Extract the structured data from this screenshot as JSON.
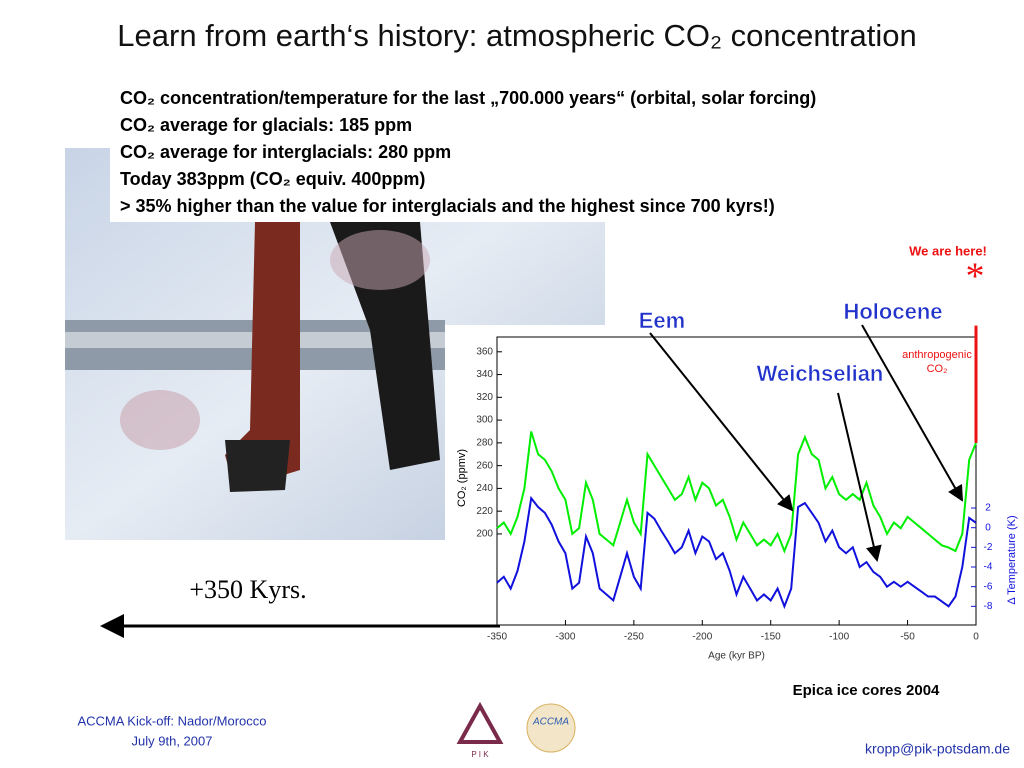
{
  "title": "Learn from earth‘s history: atmospheric CO₂ concentration",
  "bullets": [
    "CO₂ concentration/temperature for the last „700.000 years“ (orbital, solar forcing)",
    "CO₂ average for glacials: 185 ppm",
    "CO₂ average for interglacials: 280 ppm",
    "Today 383ppm (CO₂ equiv. 400ppm)",
    "> 35% higher than the value for interglacials and the highest since 700 kyrs!)"
  ],
  "chart_data": {
    "type": "line",
    "xlabel": "Age (kyr BP)",
    "ylabel": "CO₂ (ppmv)",
    "y2label": "Δ Temperature (K)",
    "x": [
      -350,
      -345,
      -340,
      -335,
      -330,
      -325,
      -320,
      -315,
      -310,
      -305,
      -300,
      -295,
      -290,
      -285,
      -280,
      -275,
      -270,
      -265,
      -260,
      -255,
      -250,
      -245,
      -240,
      -235,
      -230,
      -225,
      -220,
      -215,
      -210,
      -205,
      -200,
      -195,
      -190,
      -185,
      -180,
      -175,
      -170,
      -165,
      -160,
      -155,
      -150,
      -145,
      -140,
      -135,
      -130,
      -125,
      -120,
      -115,
      -110,
      -105,
      -100,
      -95,
      -90,
      -85,
      -80,
      -75,
      -70,
      -65,
      -60,
      -55,
      -50,
      -45,
      -40,
      -35,
      -30,
      -25,
      -20,
      -15,
      -10,
      -5,
      0
    ],
    "series": [
      {
        "color": "#00ee00",
        "values": [
          205,
          210,
          200,
          215,
          240,
          290,
          270,
          265,
          255,
          240,
          230,
          200,
          205,
          245,
          230,
          200,
          195,
          190,
          210,
          230,
          210,
          200,
          270,
          260,
          250,
          240,
          230,
          235,
          250,
          230,
          245,
          240,
          225,
          230,
          215,
          195,
          210,
          200,
          190,
          195,
          190,
          200,
          185,
          200,
          270,
          285,
          270,
          265,
          240,
          250,
          235,
          230,
          235,
          230,
          245,
          225,
          215,
          200,
          210,
          205,
          215,
          210,
          205,
          200,
          195,
          190,
          188,
          185,
          200,
          265,
          280
        ]
      },
      {
        "color": "#1111dd",
        "axis": "y2",
        "values": [
          -5.6,
          -5.0,
          -6.2,
          -4.4,
          -1.4,
          3.0,
          2.1,
          1.5,
          0.3,
          -1.4,
          -2.6,
          -6.2,
          -5.6,
          -0.9,
          -2.6,
          -6.2,
          -6.8,
          -7.4,
          -5.0,
          -2.6,
          -5.0,
          -6.2,
          1.5,
          0.9,
          -0.3,
          -1.4,
          -2.6,
          -2.0,
          -0.3,
          -2.6,
          -0.9,
          -1.4,
          -3.2,
          -2.6,
          -4.4,
          -6.8,
          -5.0,
          -6.2,
          -7.4,
          -6.8,
          -7.4,
          -6.2,
          -8.0,
          -6.2,
          2.1,
          2.5,
          1.5,
          0.5,
          -1.4,
          -0.3,
          -2.0,
          -2.6,
          -2.0,
          -4.0,
          -3.5,
          -4.5,
          -5.0,
          -6.0,
          -5.5,
          -6.0,
          -5.5,
          -6.0,
          -6.5,
          -7.0,
          -7.0,
          -7.5,
          -8.0,
          -7.0,
          -4.0,
          1.0,
          0.5
        ]
      },
      {
        "color": "#ee1111",
        "x": [
          0,
          0
        ],
        "values": [
          280,
          383
        ]
      }
    ],
    "xlim": [
      -350,
      0
    ],
    "xticks": [
      -350,
      -300,
      -250,
      -200,
      -150,
      -100,
      -50,
      0
    ],
    "ylim": [
      120,
      373
    ],
    "yticks": [
      200,
      220,
      240,
      260,
      280,
      300,
      320,
      340,
      360
    ],
    "y2lim": [
      -9.9,
      19.4
    ],
    "y2ticks": [
      -8,
      -6,
      -4,
      -2,
      0,
      2
    ],
    "annotations": {
      "eem": "Eem",
      "holocene": "Holocene",
      "weichselian": "Weichselian",
      "here": "We are here!",
      "star": "*",
      "anthro1": "anthropogenic",
      "anthro2": "CO₂"
    }
  },
  "span_label": "+350 Kyrs.",
  "source": "Epica ice cores 2004",
  "footer": {
    "event": "ACCMA Kick-off: Nador/Morocco",
    "date": "July 9th, 2007",
    "email": "kropp@pik-potsdam.de",
    "logo1": "P I K",
    "logo2": "ACCMA"
  }
}
